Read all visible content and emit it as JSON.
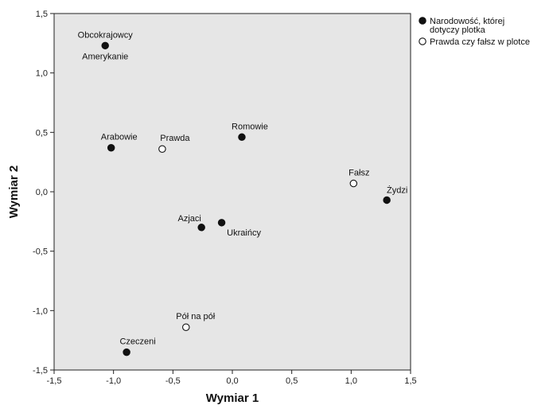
{
  "chart_data": {
    "type": "scatter",
    "title": "",
    "xlabel": "Wymiar 1",
    "ylabel": "Wymiar 2",
    "xlim": [
      -1.5,
      1.5
    ],
    "ylim": [
      -1.5,
      1.5
    ],
    "xticks": [
      "-1,5",
      "-1,0",
      "-0,5",
      "0,0",
      "0,5",
      "1,0",
      "1,5"
    ],
    "yticks": [
      "1,5",
      "1,0",
      "0,5",
      "0,0",
      "-0,5",
      "-1,0",
      "-1,5"
    ],
    "grid": false,
    "legend_position": "top-right",
    "series": [
      {
        "name": "Narodowość, której dotyczy plotka",
        "legend_lines": [
          "Narodowość, której",
          "dotyczy plotka"
        ],
        "marker": "filled",
        "points": [
          {
            "label": "Obcokrajowcy",
            "x": -1.07,
            "y": 1.23
          },
          {
            "label": "Amerykanie",
            "x": -1.07,
            "y": 1.23
          },
          {
            "label": "Arabowie",
            "x": -1.02,
            "y": 0.37
          },
          {
            "label": "Romowie",
            "x": 0.08,
            "y": 0.46
          },
          {
            "label": "Żydzi",
            "x": 1.3,
            "y": -0.07
          },
          {
            "label": "Azjaci",
            "x": -0.26,
            "y": -0.3
          },
          {
            "label": "Ukraińcy",
            "x": -0.09,
            "y": -0.26
          },
          {
            "label": "Czeczeni",
            "x": -0.89,
            "y": -1.35
          }
        ]
      },
      {
        "name": "Prawda czy fałsz w plotce",
        "legend_lines": [
          "Prawda czy fałsz w plotce"
        ],
        "marker": "hollow",
        "points": [
          {
            "label": "Prawda",
            "x": -0.59,
            "y": 0.36
          },
          {
            "label": "Fałsz",
            "x": 1.02,
            "y": 0.07
          },
          {
            "label": "Pół na pół",
            "x": -0.39,
            "y": -1.14
          }
        ]
      }
    ]
  }
}
